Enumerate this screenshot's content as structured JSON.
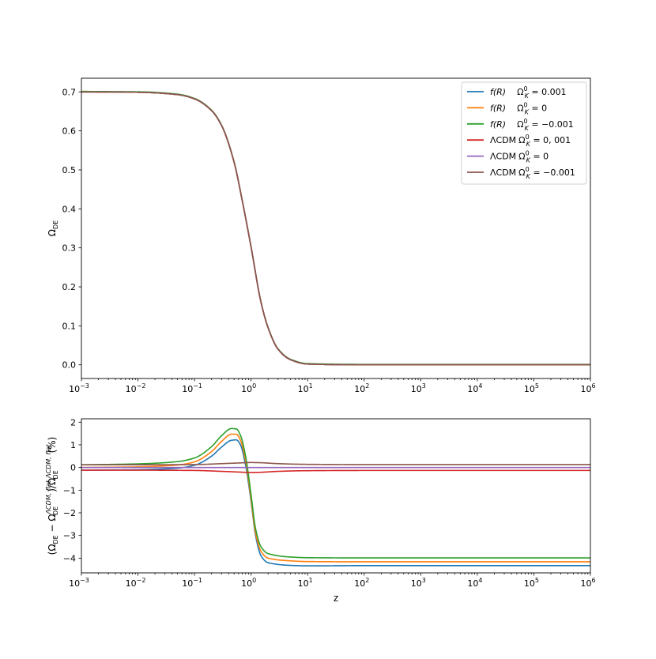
{
  "chart_data": [
    {
      "type": "line",
      "ylabel": "Ω_DE",
      "xscale": "log",
      "xlim": [
        0.001,
        1000000
      ],
      "ylim": [
        -0.035,
        0.735
      ],
      "xticks": [
        0.001,
        0.01,
        0.1,
        1,
        10,
        100,
        1000,
        10000,
        100000,
        1000000
      ],
      "yticks": [
        "0.0",
        "0.1",
        "0.2",
        "0.3",
        "0.4",
        "0.5",
        "0.6",
        "0.7"
      ],
      "legend_position": "top-right",
      "series": [
        {
          "name": "f(R)    Ω_K^0 = 0.001",
          "color": "#1f77b4"
        },
        {
          "name": "f(R)    Ω_K^0 = 0",
          "color": "#ff7f0e"
        },
        {
          "name": "f(R)    Ω_K^0 = −0.001",
          "color": "#2ca02c"
        },
        {
          "name": "ΛCDM Ω_K^0 = 0, 001",
          "color": "#d62728"
        },
        {
          "name": "ΛCDM Ω_K^0 = 0",
          "color": "#9467bd"
        },
        {
          "name": "ΛCDM Ω_K^0 = −0.001",
          "color": "#8c564b"
        }
      ],
      "x": [
        0.001,
        0.01,
        0.05,
        0.1,
        0.2,
        0.3,
        0.5,
        0.7,
        1,
        1.5,
        2,
        3,
        5,
        10,
        100,
        1000000
      ],
      "y": [
        0.7,
        0.699,
        0.693,
        0.682,
        0.652,
        0.614,
        0.52,
        0.42,
        0.302,
        0.16,
        0.095,
        0.04,
        0.013,
        0.002,
        0.0,
        0.0
      ]
    },
    {
      "type": "line",
      "xlabel": "z",
      "ylabel": "(Ω_DE − Ω_DE^ΛCDM, flat)/Ω_DE^ΛCDM, flat (%)",
      "xscale": "log",
      "xlim": [
        0.001,
        1000000
      ],
      "ylim": [
        -4.65,
        2.15
      ],
      "xticks": [
        0.001,
        0.01,
        0.1,
        1,
        10,
        100,
        1000,
        10000,
        100000,
        1000000
      ],
      "yticks": [
        "−4",
        "−3",
        "−2",
        "−1",
        "0",
        "1",
        "2"
      ],
      "series": [
        {
          "name": "f(R)    Ω_K^0 = 0.001",
          "color": "#1f77b4",
          "x": [
            0.001,
            0.01,
            0.05,
            0.1,
            0.2,
            0.3,
            0.45,
            0.55,
            0.65,
            0.8,
            1,
            1.2,
            1.5,
            2,
            5,
            10,
            100,
            1000000
          ],
          "y": [
            -0.12,
            -0.1,
            -0.03,
            0.1,
            0.5,
            0.9,
            1.2,
            1.22,
            1.0,
            0.1,
            -1.5,
            -3.0,
            -3.9,
            -4.2,
            -4.32,
            -4.34,
            -4.33,
            -4.33
          ]
        },
        {
          "name": "f(R)    Ω_K^0 = 0",
          "color": "#ff7f0e",
          "x": [
            0.001,
            0.01,
            0.05,
            0.1,
            0.2,
            0.3,
            0.45,
            0.55,
            0.65,
            0.8,
            1,
            1.2,
            1.5,
            2,
            5,
            10,
            100,
            1000000
          ],
          "y": [
            0.0,
            0.03,
            0.11,
            0.25,
            0.7,
            1.15,
            1.47,
            1.47,
            1.2,
            0.3,
            -1.4,
            -2.9,
            -3.7,
            -4.0,
            -4.12,
            -4.15,
            -4.16,
            -4.16
          ]
        },
        {
          "name": "f(R)    Ω_K^0 = −0.001",
          "color": "#2ca02c",
          "x": [
            0.001,
            0.01,
            0.05,
            0.1,
            0.2,
            0.3,
            0.45,
            0.55,
            0.65,
            0.8,
            1,
            1.2,
            1.5,
            2,
            5,
            10,
            100,
            1000000
          ],
          "y": [
            0.12,
            0.16,
            0.26,
            0.42,
            0.92,
            1.4,
            1.72,
            1.7,
            1.42,
            0.5,
            -1.2,
            -2.7,
            -3.5,
            -3.8,
            -3.95,
            -3.98,
            -3.99,
            -3.99
          ]
        },
        {
          "name": "ΛCDM Ω_K^0 = 0, 001",
          "color": "#d62728",
          "x": [
            0.001,
            0.01,
            0.1,
            0.3,
            0.6,
            1,
            1.5,
            3,
            10,
            100,
            1000000
          ],
          "y": [
            -0.12,
            -0.12,
            -0.13,
            -0.17,
            -0.2,
            -0.22,
            -0.21,
            -0.17,
            -0.14,
            -0.13,
            -0.13
          ]
        },
        {
          "name": "ΛCDM Ω_K^0 = 0",
          "color": "#9467bd",
          "x": [
            0.001,
            1000000
          ],
          "y": [
            0.0,
            0.0
          ]
        },
        {
          "name": "ΛCDM Ω_K^0 = −0.001",
          "color": "#8c564b",
          "x": [
            0.001,
            0.01,
            0.1,
            0.3,
            0.6,
            1,
            1.5,
            3,
            10,
            100,
            1000000
          ],
          "y": [
            0.12,
            0.12,
            0.13,
            0.17,
            0.2,
            0.22,
            0.21,
            0.17,
            0.14,
            0.13,
            0.13
          ]
        }
      ]
    }
  ]
}
